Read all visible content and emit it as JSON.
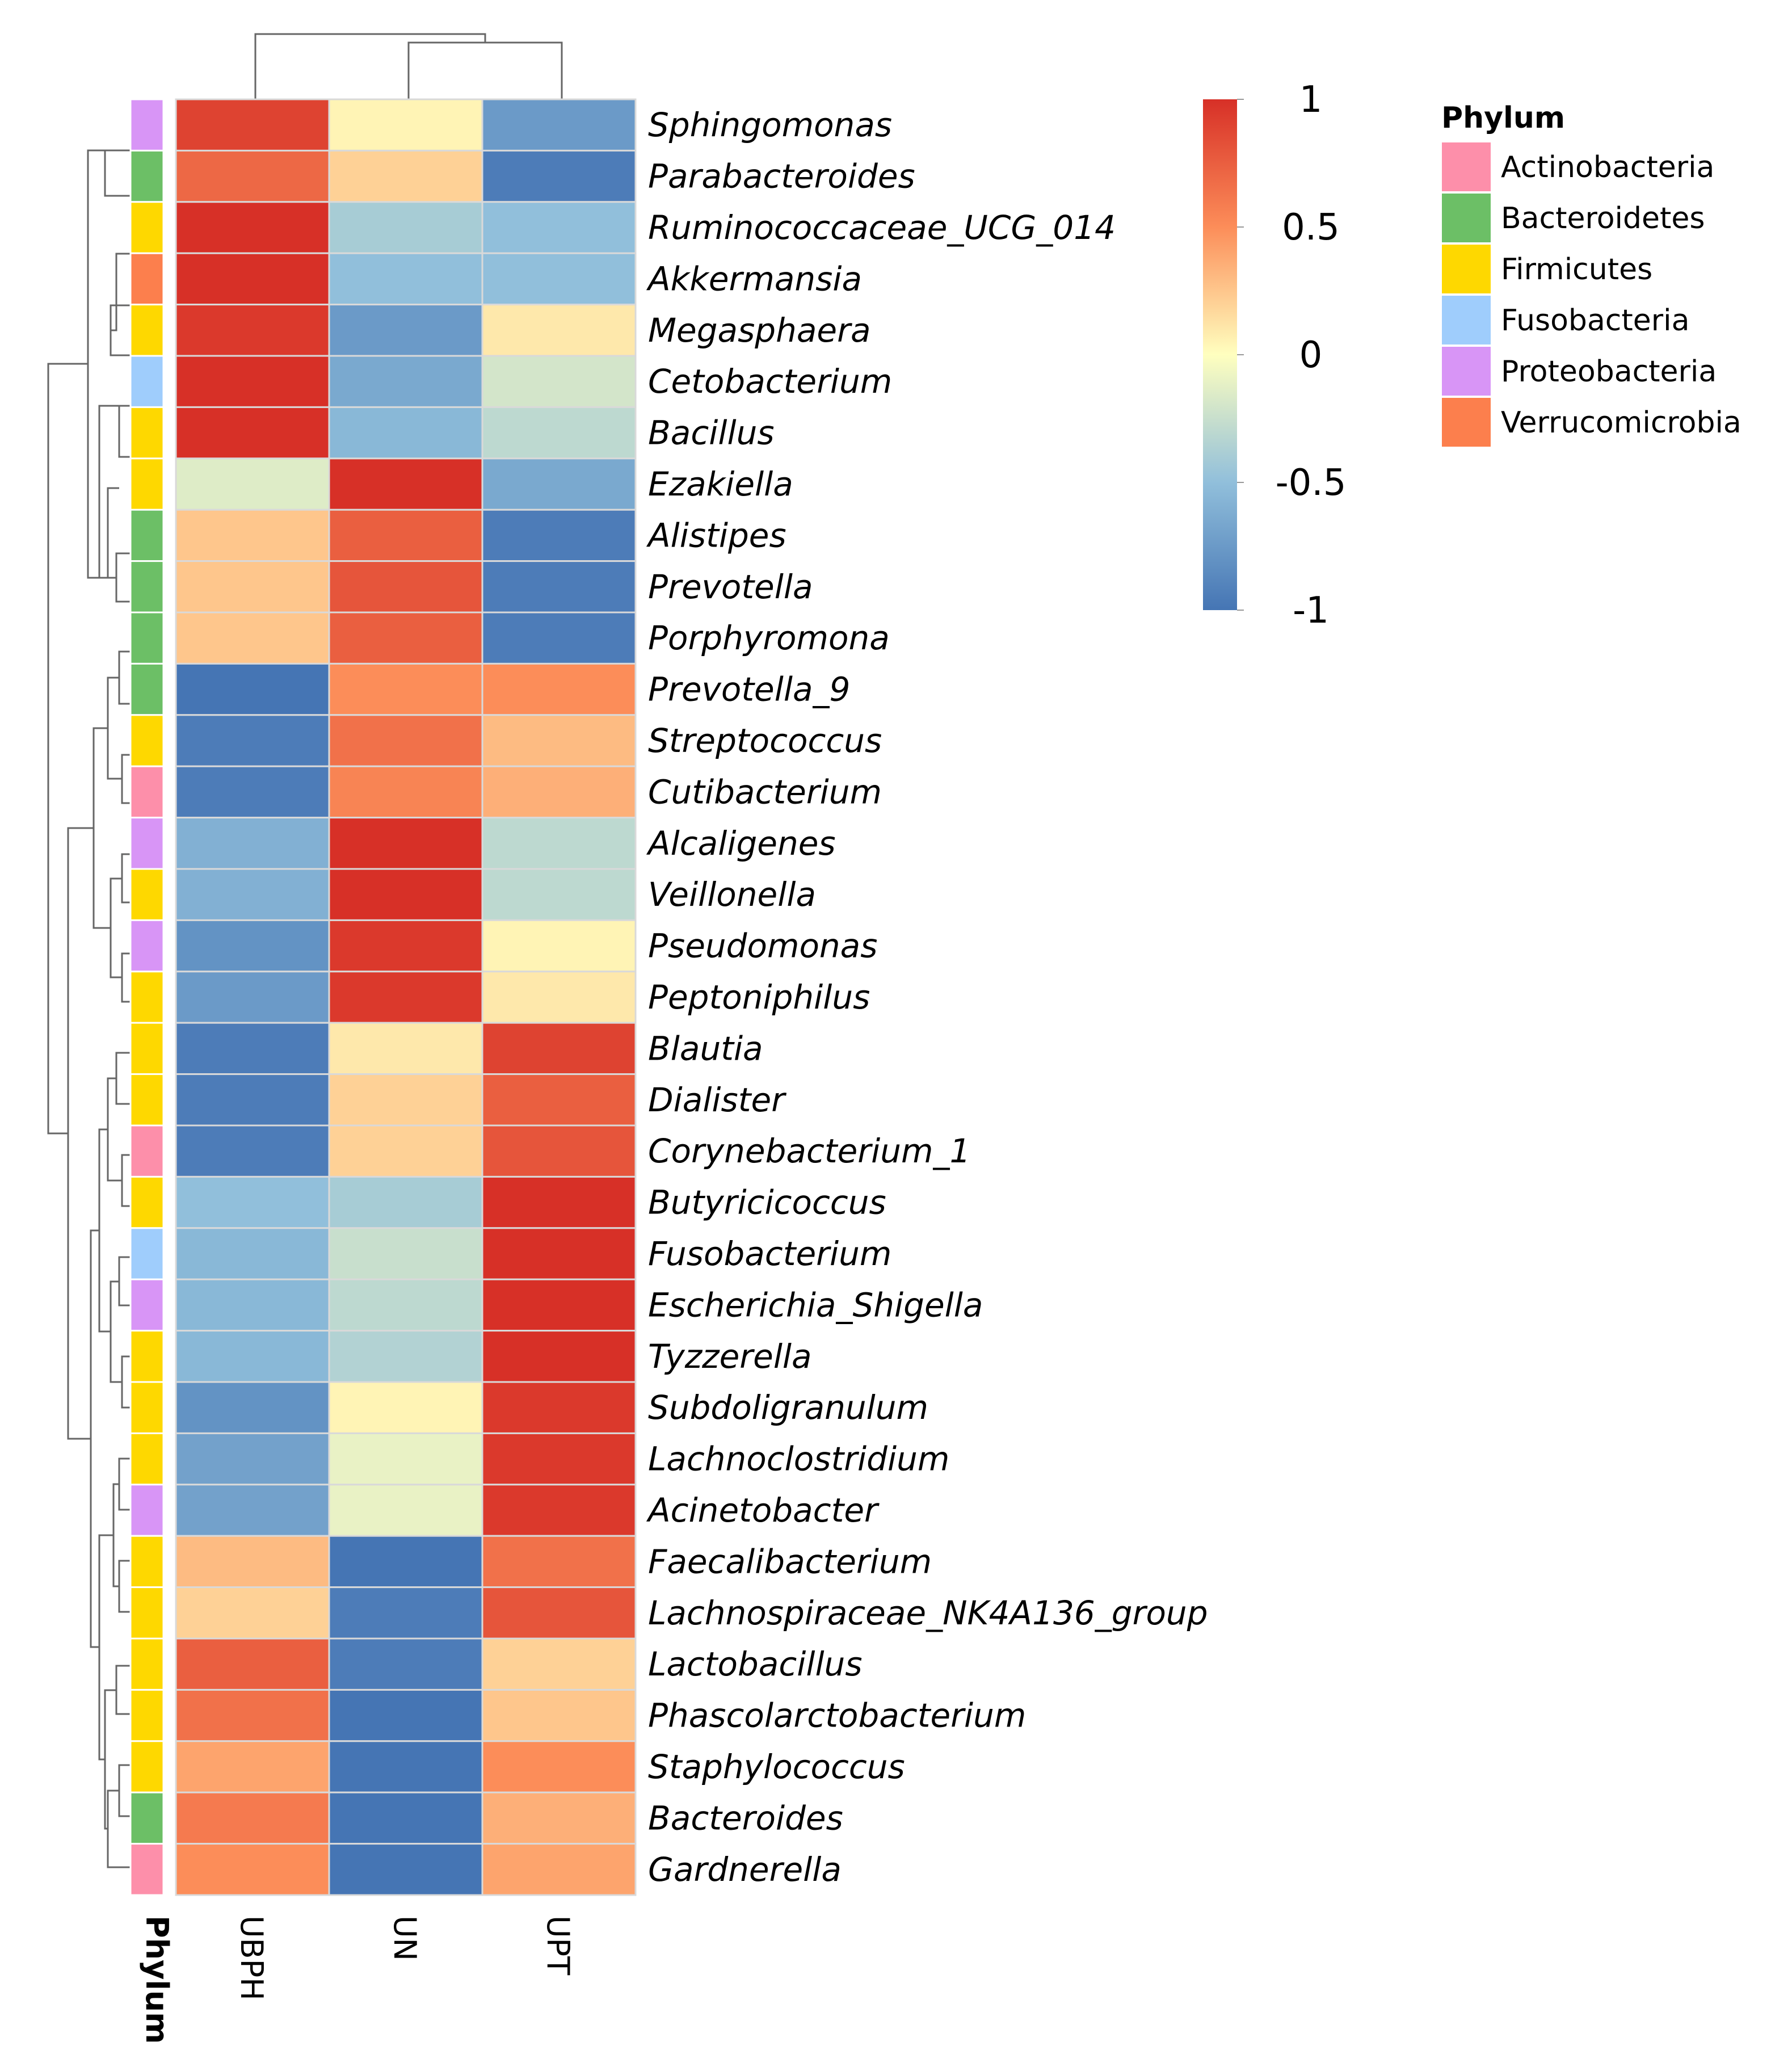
{
  "chart_data": {
    "type": "heatmap",
    "title": "",
    "columns": [
      "UBPH",
      "UN",
      "UPT"
    ],
    "rows": [
      "Sphingomonas",
      "Parabacteroides",
      "Ruminococcaceae_UCG_014",
      "Akkermansia",
      "Megasphaera",
      "Cetobacterium",
      "Bacillus",
      "Ezakiella",
      "Alistipes",
      "Prevotella",
      "Porphyromona",
      "Prevotella_9",
      "Streptococcus",
      "Cutibacterium",
      "Alcaligenes",
      "Veillonella",
      "Pseudomonas",
      "Peptoniphilus",
      "Blautia",
      "Dialister",
      "Corynebacterium_1",
      "Butyricicoccus",
      "Fusobacterium",
      "Escherichia_Shigella",
      "Tyzzerella",
      "Subdoligranulum",
      "Lachnoclostridium",
      "Acinetobacter",
      "Faecalibacterium",
      "Lachnospiraceae_NK4A136_group",
      "Lactobacillus",
      "Phascolarctobacterium",
      "Staphylococcus",
      "Bacteroides",
      "Gardnerella"
    ],
    "values": [
      [
        0.9,
        0.05,
        -0.75
      ],
      [
        0.7,
        0.2,
        -0.95
      ],
      [
        1.0,
        -0.4,
        -0.5
      ],
      [
        1.0,
        -0.5,
        -0.5
      ],
      [
        0.95,
        -0.75,
        0.1
      ],
      [
        1.0,
        -0.65,
        -0.2
      ],
      [
        1.0,
        -0.55,
        -0.3
      ],
      [
        -0.15,
        1.0,
        -0.65
      ],
      [
        0.25,
        0.75,
        -0.95
      ],
      [
        0.25,
        0.8,
        -0.95
      ],
      [
        0.25,
        0.75,
        -0.95
      ],
      [
        -1.0,
        0.5,
        0.5
      ],
      [
        -0.95,
        0.65,
        0.3
      ],
      [
        -0.95,
        0.55,
        0.35
      ],
      [
        -0.6,
        1.0,
        -0.3
      ],
      [
        -0.6,
        1.0,
        -0.3
      ],
      [
        -0.8,
        0.95,
        0.05
      ],
      [
        -0.75,
        0.95,
        0.1
      ],
      [
        -0.95,
        0.1,
        0.9
      ],
      [
        -0.95,
        0.2,
        0.75
      ],
      [
        -0.95,
        0.2,
        0.8
      ],
      [
        -0.5,
        -0.4,
        1.0
      ],
      [
        -0.55,
        -0.25,
        1.0
      ],
      [
        -0.55,
        -0.3,
        1.0
      ],
      [
        -0.55,
        -0.35,
        1.0
      ],
      [
        -0.8,
        0.05,
        0.95
      ],
      [
        -0.7,
        -0.1,
        0.95
      ],
      [
        -0.7,
        -0.1,
        0.95
      ],
      [
        0.3,
        -1.0,
        0.65
      ],
      [
        0.2,
        -0.95,
        0.8
      ],
      [
        0.75,
        -0.95,
        0.2
      ],
      [
        0.65,
        -1.0,
        0.25
      ],
      [
        0.4,
        -1.0,
        0.5
      ],
      [
        0.6,
        -1.0,
        0.35
      ],
      [
        0.5,
        -1.0,
        0.4
      ]
    ],
    "row_phylum": [
      "Proteobacteria",
      "Bacteroidetes",
      "Firmicutes",
      "Verrucomicrobia",
      "Firmicutes",
      "Fusobacteria",
      "Firmicutes",
      "Firmicutes",
      "Bacteroidetes",
      "Bacteroidetes",
      "Bacteroidetes",
      "Bacteroidetes",
      "Firmicutes",
      "Actinobacteria",
      "Proteobacteria",
      "Firmicutes",
      "Proteobacteria",
      "Firmicutes",
      "Firmicutes",
      "Firmicutes",
      "Actinobacteria",
      "Firmicutes",
      "Fusobacteria",
      "Proteobacteria",
      "Firmicutes",
      "Firmicutes",
      "Firmicutes",
      "Proteobacteria",
      "Firmicutes",
      "Firmicutes",
      "Firmicutes",
      "Firmicutes",
      "Firmicutes",
      "Bacteroidetes",
      "Actinobacteria"
    ],
    "annotation_column_label": "Phylum",
    "color_scale": {
      "range": [
        -1,
        1
      ],
      "ticks": [
        1,
        0.5,
        0,
        -0.5,
        -1
      ],
      "tick_labels": [
        "1",
        "0.5",
        "0",
        "-0.5",
        "-1"
      ],
      "stops": [
        {
          "value": -1,
          "color": "#4575b4"
        },
        {
          "value": -0.5,
          "color": "#91bfdb"
        },
        {
          "value": 0,
          "color": "#ffffbf"
        },
        {
          "value": 0.5,
          "color": "#fc8d59"
        },
        {
          "value": 1,
          "color": "#d73027"
        }
      ]
    },
    "legend": {
      "title": "Phylum",
      "items": [
        {
          "name": "Actinobacteria",
          "color": "#fd8faa"
        },
        {
          "name": "Bacteroidetes",
          "color": "#6cbf66"
        },
        {
          "name": "Firmicutes",
          "color": "#fed800"
        },
        {
          "name": "Fusobacteria",
          "color": "#9fcdfc"
        },
        {
          "name": "Proteobacteria",
          "color": "#d895f6"
        },
        {
          "name": "Verrucomicrobia",
          "color": "#fc7f4d"
        }
      ]
    }
  }
}
